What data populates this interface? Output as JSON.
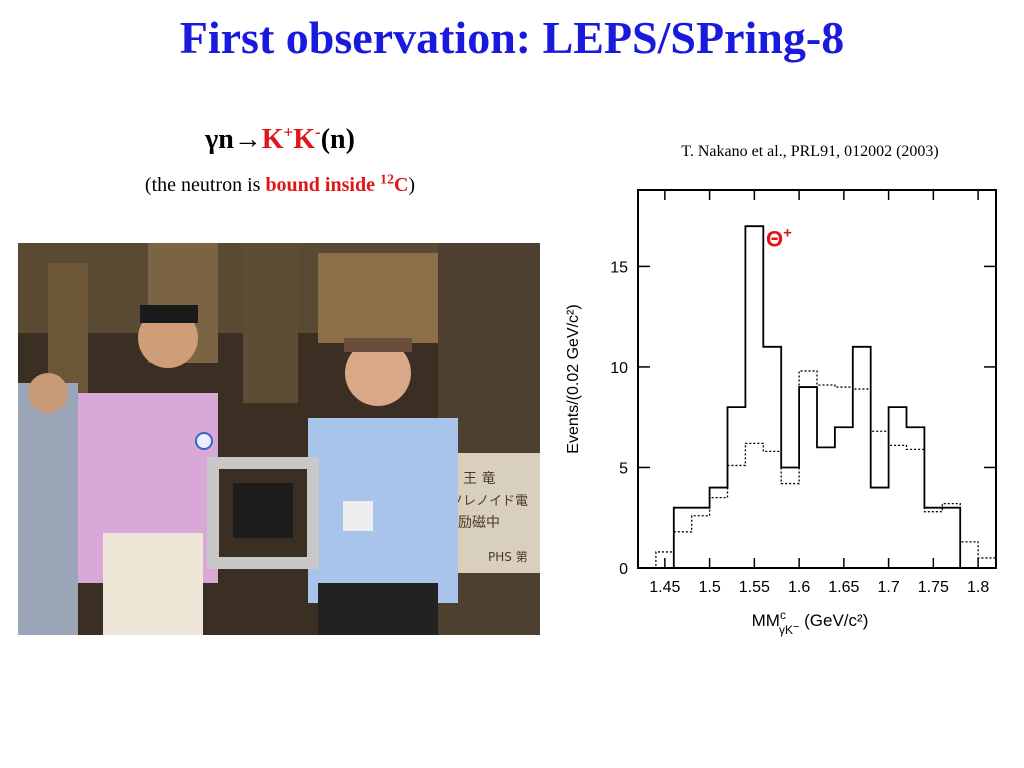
{
  "slide": {
    "title": "First observation: LEPS/SPring-8",
    "reaction": {
      "gamma": "γ",
      "n": "n",
      "arrow": "→",
      "kplus": "K",
      "kplus_sup": "+",
      "kminus": "K",
      "kminus_sup": "-",
      "n_paren": "(n)"
    },
    "subnote": {
      "prefix": "(the neutron is ",
      "bound": "bound inside",
      "isotope_sup": "12",
      "element": "C",
      "suffix": ")"
    },
    "reference": "T. Nakano et al., PRL91, 012002 (2003)"
  },
  "photo": {
    "sign_text": [
      "王 竜",
      "ソレノイド電",
      "励磁中",
      "PHS 第"
    ]
  },
  "chart_data": {
    "type": "histogram",
    "bin_edges": [
      1.42,
      1.44,
      1.46,
      1.48,
      1.5,
      1.52,
      1.54,
      1.56,
      1.58,
      1.6,
      1.62,
      1.64,
      1.66,
      1.68,
      1.7,
      1.72,
      1.74,
      1.76,
      1.78,
      1.8,
      1.82
    ],
    "series": [
      {
        "style": "solid",
        "values": [
          0,
          0,
          3,
          3,
          4,
          8,
          17,
          11,
          5,
          9,
          6,
          7,
          11,
          4,
          8,
          7,
          3,
          3,
          0,
          0
        ]
      },
      {
        "style": "dotted",
        "values": [
          0,
          0.8,
          1.8,
          2.6,
          3.5,
          5.1,
          6.2,
          5.8,
          4.2,
          9.8,
          9.1,
          9.0,
          8.9,
          6.8,
          6.1,
          5.9,
          2.8,
          3.2,
          1.3,
          0.5
        ]
      }
    ],
    "xlim": [
      1.42,
      1.82
    ],
    "ylim": [
      0,
      18.8
    ],
    "x_ticks": [
      1.45,
      1.5,
      1.55,
      1.6,
      1.65,
      1.7,
      1.75,
      1.8
    ],
    "x_tick_labels": [
      "1.45",
      "1.5",
      "1.55",
      "1.6",
      "1.65",
      "1.7",
      "1.75",
      "1.8"
    ],
    "y_ticks": [
      0,
      5,
      10,
      15
    ],
    "y_tick_labels": [
      "0",
      "5",
      "10",
      "15"
    ],
    "ylabel": "Events/(0.02 GeV/c²)",
    "xlabel_main": "MM",
    "xlabel_super": "c",
    "xlabel_sub": "γK",
    "xlabel_sub_sup": "−",
    "xlabel_units": " (GeV/c²)",
    "annotation": {
      "text": "Θ",
      "sup": "+",
      "color": "#e01515",
      "x": 1.563,
      "y": 16.0
    },
    "grid": false,
    "legend": "none"
  }
}
